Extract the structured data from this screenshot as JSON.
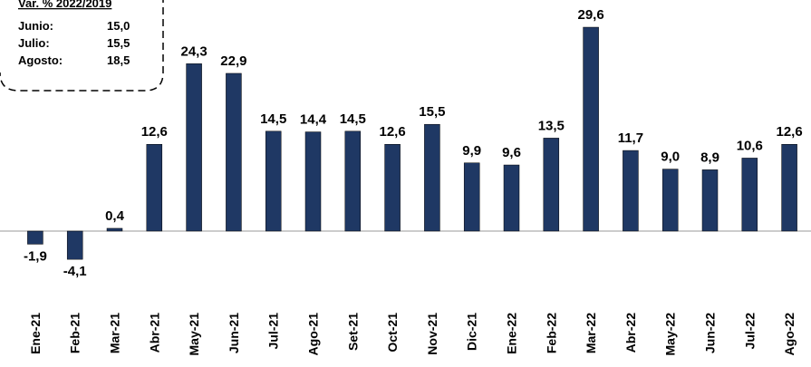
{
  "chart_data": {
    "type": "bar",
    "categories": [
      "Ene-21",
      "Feb-21",
      "Mar-21",
      "Abr-21",
      "May-21",
      "Jun-21",
      "Jul-21",
      "Ago-21",
      "Set-21",
      "Oct-21",
      "Nov-21",
      "Dic-21",
      "Ene-22",
      "Feb-22",
      "Mar-22",
      "Abr-22",
      "May-22",
      "Jun-22",
      "Jul-22",
      "Ago-22"
    ],
    "values": [
      -1.9,
      -4.1,
      0.4,
      12.6,
      24.3,
      22.9,
      14.5,
      14.4,
      14.5,
      12.6,
      15.5,
      9.9,
      9.6,
      13.5,
      29.6,
      11.7,
      9.0,
      8.9,
      10.6,
      12.6
    ],
    "value_labels": [
      "-1,9",
      "-4,1",
      "0,4",
      "12,6",
      "24,3",
      "22,9",
      "14,5",
      "14,4",
      "14,5",
      "12,6",
      "15,5",
      "9,9",
      "9,6",
      "13,5",
      "29,6",
      "11,7",
      "9,0",
      "8,9",
      "10,6",
      "12,6"
    ],
    "color": "#1f3864",
    "ylim": [
      -10,
      30
    ]
  },
  "inset": {
    "title": "Var. % 2022/2019",
    "rows": [
      [
        "Junio:",
        "15,0"
      ],
      [
        "Julio:",
        "15,5"
      ],
      [
        "Agosto:",
        "18,5"
      ]
    ]
  }
}
